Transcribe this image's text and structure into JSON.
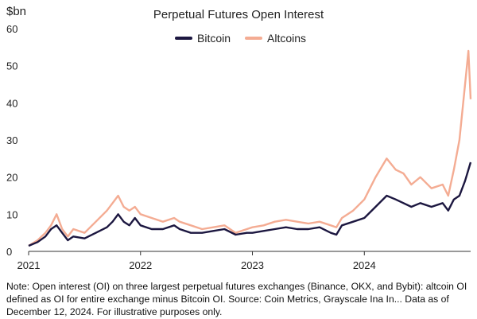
{
  "chart_data": {
    "type": "line",
    "title": "Perpetual Futures Open Interest",
    "ylabel": "$bn",
    "xlabel": "",
    "ylim": [
      0,
      60
    ],
    "yticks": [
      "0",
      "10",
      "20",
      "30",
      "40",
      "50",
      "60"
    ],
    "xticks": [
      {
        "label": "2021",
        "x": 2021.0
      },
      {
        "label": "2022",
        "x": 2022.0
      },
      {
        "label": "2023",
        "x": 2023.0
      },
      {
        "label": "2024",
        "x": 2024.0
      }
    ],
    "xlim": [
      2021.0,
      2024.95
    ],
    "grid": false,
    "legend_position": "top-center",
    "series": [
      {
        "name": "Bitcoin",
        "color": "#1c1740",
        "x": [
          2021.0,
          2021.08,
          2021.15,
          2021.2,
          2021.25,
          2021.3,
          2021.35,
          2021.4,
          2021.5,
          2021.6,
          2021.7,
          2021.75,
          2021.8,
          2021.85,
          2021.9,
          2021.95,
          2022.0,
          2022.1,
          2022.2,
          2022.3,
          2022.35,
          2022.45,
          2022.55,
          2022.65,
          2022.75,
          2022.85,
          2022.95,
          2023.0,
          2023.1,
          2023.2,
          2023.3,
          2023.4,
          2023.5,
          2023.6,
          2023.7,
          2023.75,
          2023.8,
          2023.9,
          2024.0,
          2024.1,
          2024.2,
          2024.28,
          2024.35,
          2024.42,
          2024.5,
          2024.6,
          2024.7,
          2024.75,
          2024.8,
          2024.85,
          2024.9,
          2024.95
        ],
        "values": [
          1.5,
          2.5,
          4,
          6,
          7,
          5,
          3,
          4,
          3.5,
          5,
          6.5,
          8,
          10,
          8,
          7,
          9,
          7,
          6,
          6,
          7,
          6,
          5,
          5,
          5.5,
          6,
          4.5,
          5,
          5,
          5.5,
          6,
          6.5,
          6,
          6,
          6.5,
          5,
          4.5,
          7,
          8,
          9,
          12,
          15,
          14,
          13,
          12,
          13,
          12,
          13,
          11,
          14,
          15,
          19,
          24
        ]
      },
      {
        "name": "Altcoins",
        "color": "#f4ac93",
        "x": [
          2021.0,
          2021.08,
          2021.15,
          2021.2,
          2021.25,
          2021.3,
          2021.35,
          2021.4,
          2021.5,
          2021.6,
          2021.7,
          2021.75,
          2021.8,
          2021.85,
          2021.9,
          2021.95,
          2022.0,
          2022.1,
          2022.2,
          2022.3,
          2022.35,
          2022.45,
          2022.55,
          2022.65,
          2022.75,
          2022.85,
          2022.95,
          2023.0,
          2023.1,
          2023.2,
          2023.3,
          2023.4,
          2023.5,
          2023.6,
          2023.7,
          2023.75,
          2023.8,
          2023.9,
          2024.0,
          2024.1,
          2024.2,
          2024.28,
          2024.35,
          2024.42,
          2024.5,
          2024.6,
          2024.7,
          2024.75,
          2024.8,
          2024.85,
          2024.9,
          2024.93,
          2024.95
        ],
        "values": [
          1.5,
          3,
          5,
          7,
          10,
          6,
          4,
          6,
          5,
          8,
          11,
          13,
          15,
          12,
          11,
          12,
          10,
          9,
          8,
          9,
          8,
          7,
          6,
          6.5,
          7,
          5,
          6,
          6.5,
          7,
          8,
          8.5,
          8,
          7.5,
          8,
          7,
          6.5,
          9,
          11,
          14,
          20,
          25,
          22,
          21,
          18,
          20,
          17,
          18,
          15,
          22,
          30,
          45,
          54,
          41
        ]
      }
    ]
  },
  "footer": {
    "note": "Note: Open interest (OI) on three largest perpetual futures exchanges (Binance, OKX, and Bybit): altcoin OI defined as OI for entire exchange minus Bitcoin OI. Source: Coin Metrics, Grayscale Ina In... Data as of December 12, 2024. For illustrative purposes only."
  }
}
